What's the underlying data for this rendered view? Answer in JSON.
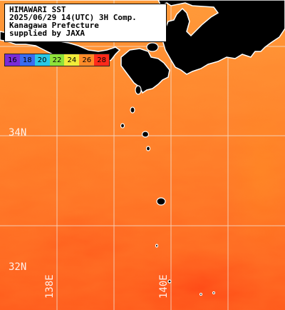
{
  "title_lines": [
    "HIMAWARI SST",
    "2025/06/29 14(UTC) 3H Comp.",
    "Kanagawa Prefecture",
    "supplied by JAXA"
  ],
  "color_scale": [
    {
      "label": "16",
      "color": "#7a2cd6"
    },
    {
      "label": "18",
      "color": "#3a6cf0"
    },
    {
      "label": "20",
      "color": "#2cc8e6"
    },
    {
      "label": "22",
      "color": "#8ee23a"
    },
    {
      "label": "24",
      "color": "#f2ec3a"
    },
    {
      "label": "26",
      "color": "#ff8a28"
    },
    {
      "label": "28",
      "color": "#ff2a1a"
    }
  ],
  "lat_labels": [
    "34N",
    "32N"
  ],
  "lon_labels": [
    "138E",
    "140E"
  ],
  "colors": {
    "land": "#000000",
    "coast": "#ffffff",
    "grid": "#f3e8e0"
  }
}
